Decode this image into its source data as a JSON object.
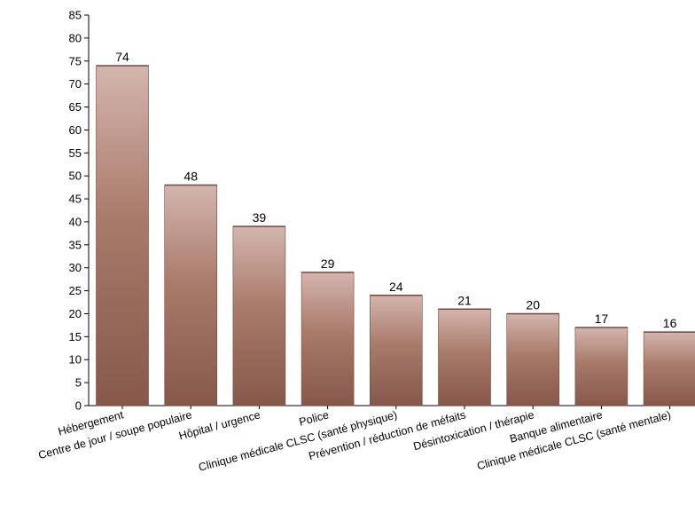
{
  "chart_data": {
    "type": "bar",
    "title": "",
    "xlabel": "",
    "ylabel": "",
    "categories": [
      "Hébergement",
      "Centre de jour / soupe populaire",
      "Hôpital / urgence",
      "Police",
      "Clinique médicale CLSC (santé physique)",
      "Prévention / réduction de méfaits",
      "Désintoxication / thérapie",
      "Banque alimentaire",
      "Clinique médicale CLSC (santé mentale)"
    ],
    "values": [
      74,
      48,
      39,
      29,
      24,
      21,
      20,
      17,
      16
    ],
    "ylim": [
      0,
      85
    ],
    "yticks": [
      0,
      5,
      10,
      15,
      20,
      25,
      30,
      35,
      40,
      45,
      50,
      55,
      60,
      65,
      70,
      75,
      80,
      85
    ],
    "grid": false,
    "legend": "none",
    "data_labels": true,
    "colors": {
      "bar_top": "#d4b5ae",
      "bar_mid": "#a97a6a",
      "bar_bottom": "#86574b",
      "bar_edge": "#6e4a40",
      "axis": "#000000"
    }
  }
}
